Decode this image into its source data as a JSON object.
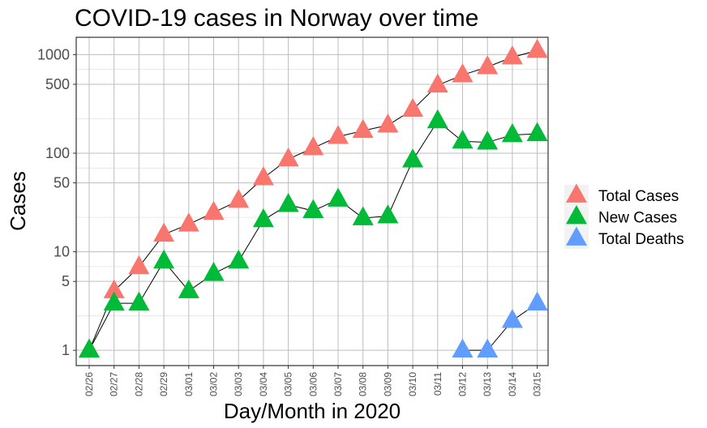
{
  "chart_data": {
    "type": "line",
    "title": "COVID-19 cases in Norway over time",
    "xlabel": "Day/Month in 2020",
    "ylabel": "Cases",
    "y_scale": "log",
    "ylim": [
      0.7,
      1500
    ],
    "grid": true,
    "legend_position": "right",
    "categories": [
      "02/26",
      "02/27",
      "02/28",
      "02/29",
      "03/01",
      "03/02",
      "03/03",
      "03/04",
      "03/05",
      "03/06",
      "03/07",
      "03/08",
      "03/09",
      "03/10",
      "03/11",
      "03/12",
      "03/13",
      "03/14",
      "03/15"
    ],
    "y_ticks": [
      1,
      5,
      10,
      50,
      100,
      500,
      1000
    ],
    "series": [
      {
        "name": "Total Cases",
        "color": "#F8766D",
        "values": [
          1,
          4,
          7,
          15,
          19,
          25,
          33,
          56,
          87,
          113,
          147,
          169,
          192,
          277,
          489,
          621,
          750,
          943,
          1100
        ]
      },
      {
        "name": "New Cases",
        "color": "#00BA38",
        "values": [
          1,
          3,
          3,
          8,
          4,
          6,
          8,
          21,
          30,
          26,
          34,
          22,
          23,
          85,
          212,
          132,
          129,
          153,
          157
        ]
      },
      {
        "name": "Total Deaths",
        "color": "#619CFF",
        "values": [
          null,
          null,
          null,
          null,
          null,
          null,
          null,
          null,
          null,
          null,
          null,
          null,
          null,
          null,
          null,
          1,
          1,
          2,
          3
        ]
      }
    ]
  }
}
